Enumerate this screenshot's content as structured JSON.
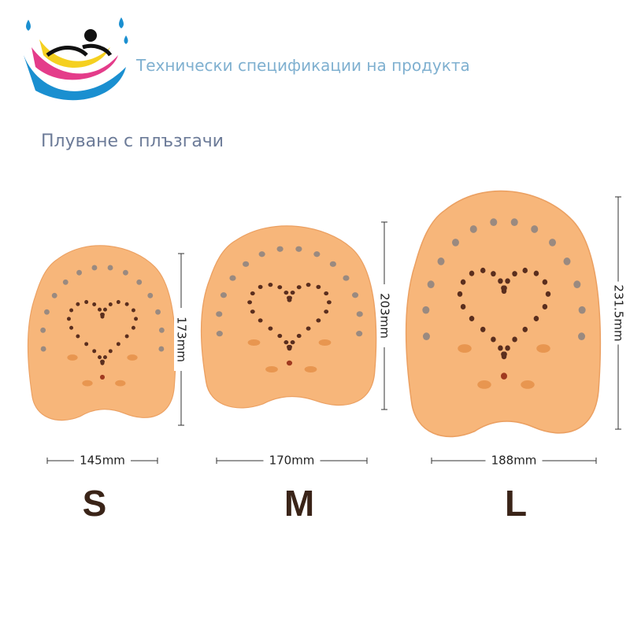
{
  "header": {
    "title": "Технически спецификации на продукта",
    "subtitle": "Плуване с плъзгачи"
  },
  "products": [
    {
      "size": "S",
      "width": "145mm",
      "height": "173mm"
    },
    {
      "size": "M",
      "width": "170mm",
      "height": "203mm"
    },
    {
      "size": "L",
      "width": "188mm",
      "height": "231.5mm"
    }
  ]
}
